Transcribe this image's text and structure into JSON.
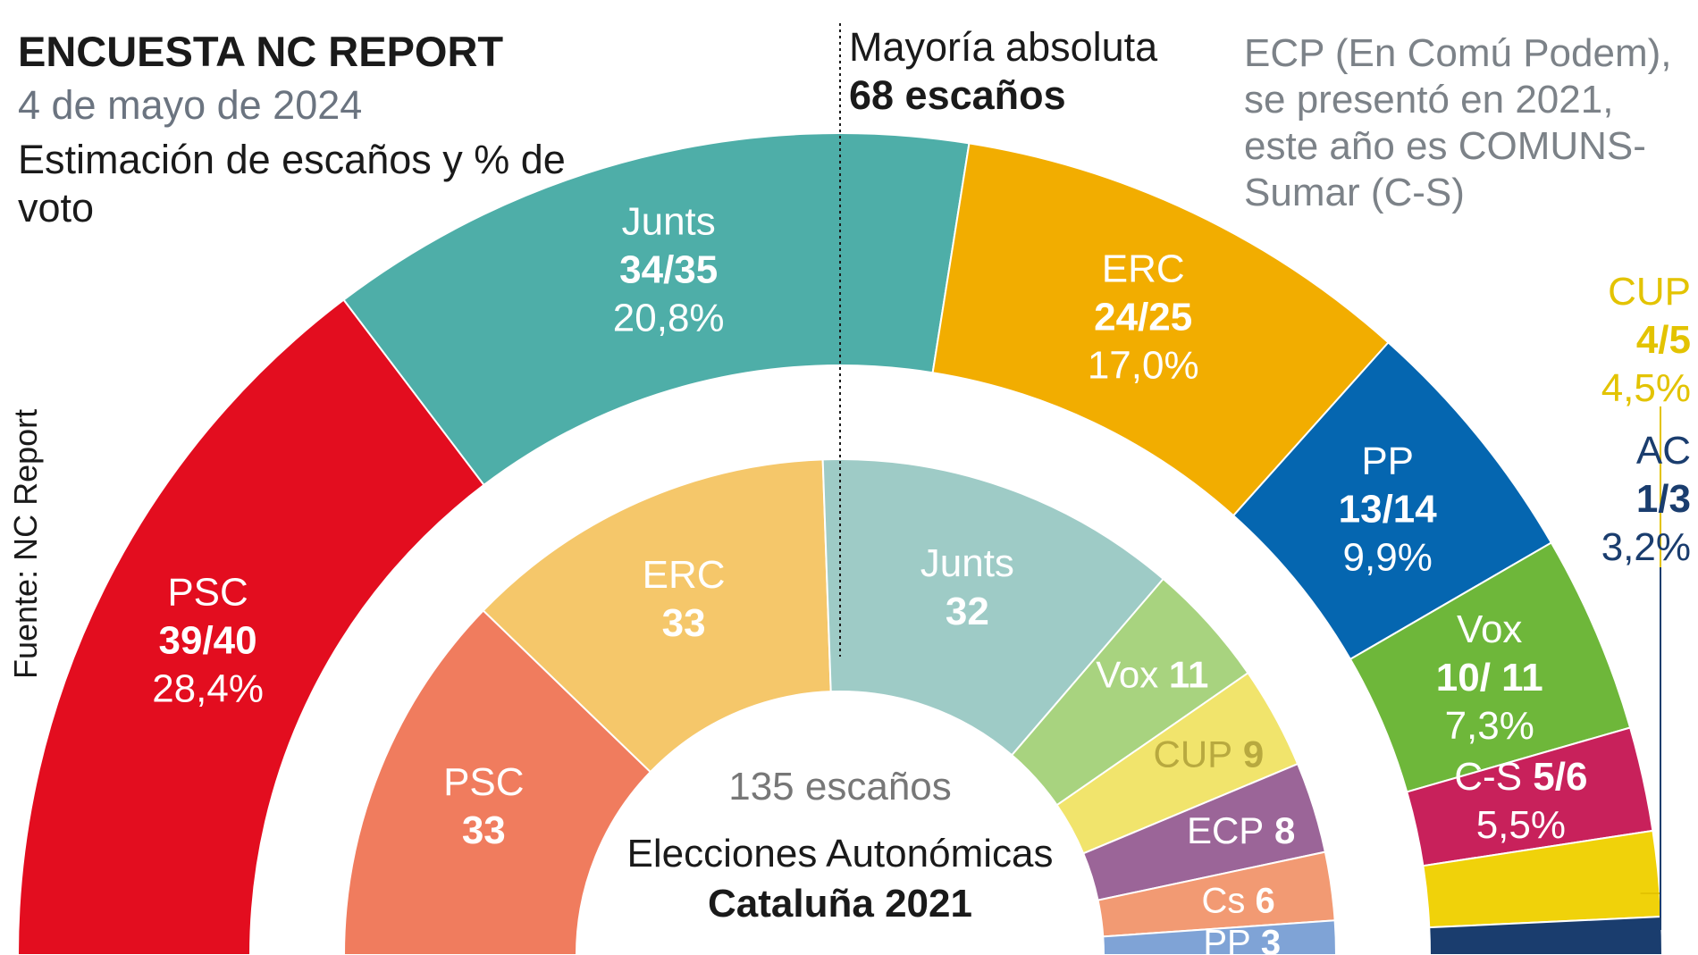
{
  "header": {
    "title": "ENCUESTA NC REPORT",
    "date": "4 de mayo de 2024",
    "description": "Estimación de escaños y % de voto"
  },
  "majority": {
    "label": "Mayoría absoluta",
    "value": "68 escaños"
  },
  "note": "ECP (En Comú Podem), se presentó en 2021, este año es COMUNS-Sumar (C-S)",
  "source": "Fuente: NC Report",
  "inner_center": {
    "total": "135 escaños",
    "election_line1": "Elecciones Autonómicas",
    "election_line2": "Cataluña 2021"
  },
  "chart_data": [
    {
      "type": "pie",
      "variant": "semicircle-parliament",
      "title": "Estimación de escaños y % de voto",
      "total_seats": 135,
      "series": [
        {
          "name": "PSC",
          "seats": "39/40",
          "seats_mid": 39.5,
          "vote": "28,4%",
          "color": "#e30d1f"
        },
        {
          "name": "Junts",
          "seats": "34/35",
          "seats_mid": 34.5,
          "vote": "20,8%",
          "color": "#4eaea8"
        },
        {
          "name": "ERC",
          "seats": "24/25",
          "seats_mid": 24.5,
          "vote": "17,0%",
          "color": "#f2ad00"
        },
        {
          "name": "PP",
          "seats": "13/14",
          "seats_mid": 13.5,
          "vote": "9,9%",
          "color": "#0566b0"
        },
        {
          "name": "Vox",
          "seats": "10/ 11",
          "seats_mid": 10.5,
          "vote": "7,3%",
          "color": "#6eb73a"
        },
        {
          "name": "C-S",
          "seats": "5/6",
          "seats_mid": 5.5,
          "vote": "5,5%",
          "color": "#c8215b"
        },
        {
          "name": "CUP",
          "seats": "4/5",
          "seats_mid": 4.5,
          "vote": "4,5%",
          "color": "#f0d20a"
        },
        {
          "name": "AC",
          "seats": "1/3",
          "seats_mid": 2,
          "vote": "3,2%",
          "color": "#1a3d6e"
        }
      ]
    },
    {
      "type": "pie",
      "variant": "semicircle-parliament",
      "title": "Elecciones Autonómicas Cataluña 2021",
      "total_seats": 135,
      "series": [
        {
          "name": "PSC",
          "seats": 33,
          "color": "#f07c5e"
        },
        {
          "name": "ERC",
          "seats": 33,
          "color": "#f5c76a"
        },
        {
          "name": "Junts",
          "seats": 32,
          "color": "#9ecbc6"
        },
        {
          "name": "Vox",
          "seats": 11,
          "color": "#a8d37f"
        },
        {
          "name": "CUP",
          "seats": 9,
          "color": "#f1e46c"
        },
        {
          "name": "ECP",
          "seats": 8,
          "color": "#9b6598"
        },
        {
          "name": "Cs",
          "seats": 6,
          "color": "#f29a73"
        },
        {
          "name": "PP",
          "seats": 3,
          "color": "#7fa3d6"
        }
      ]
    }
  ]
}
